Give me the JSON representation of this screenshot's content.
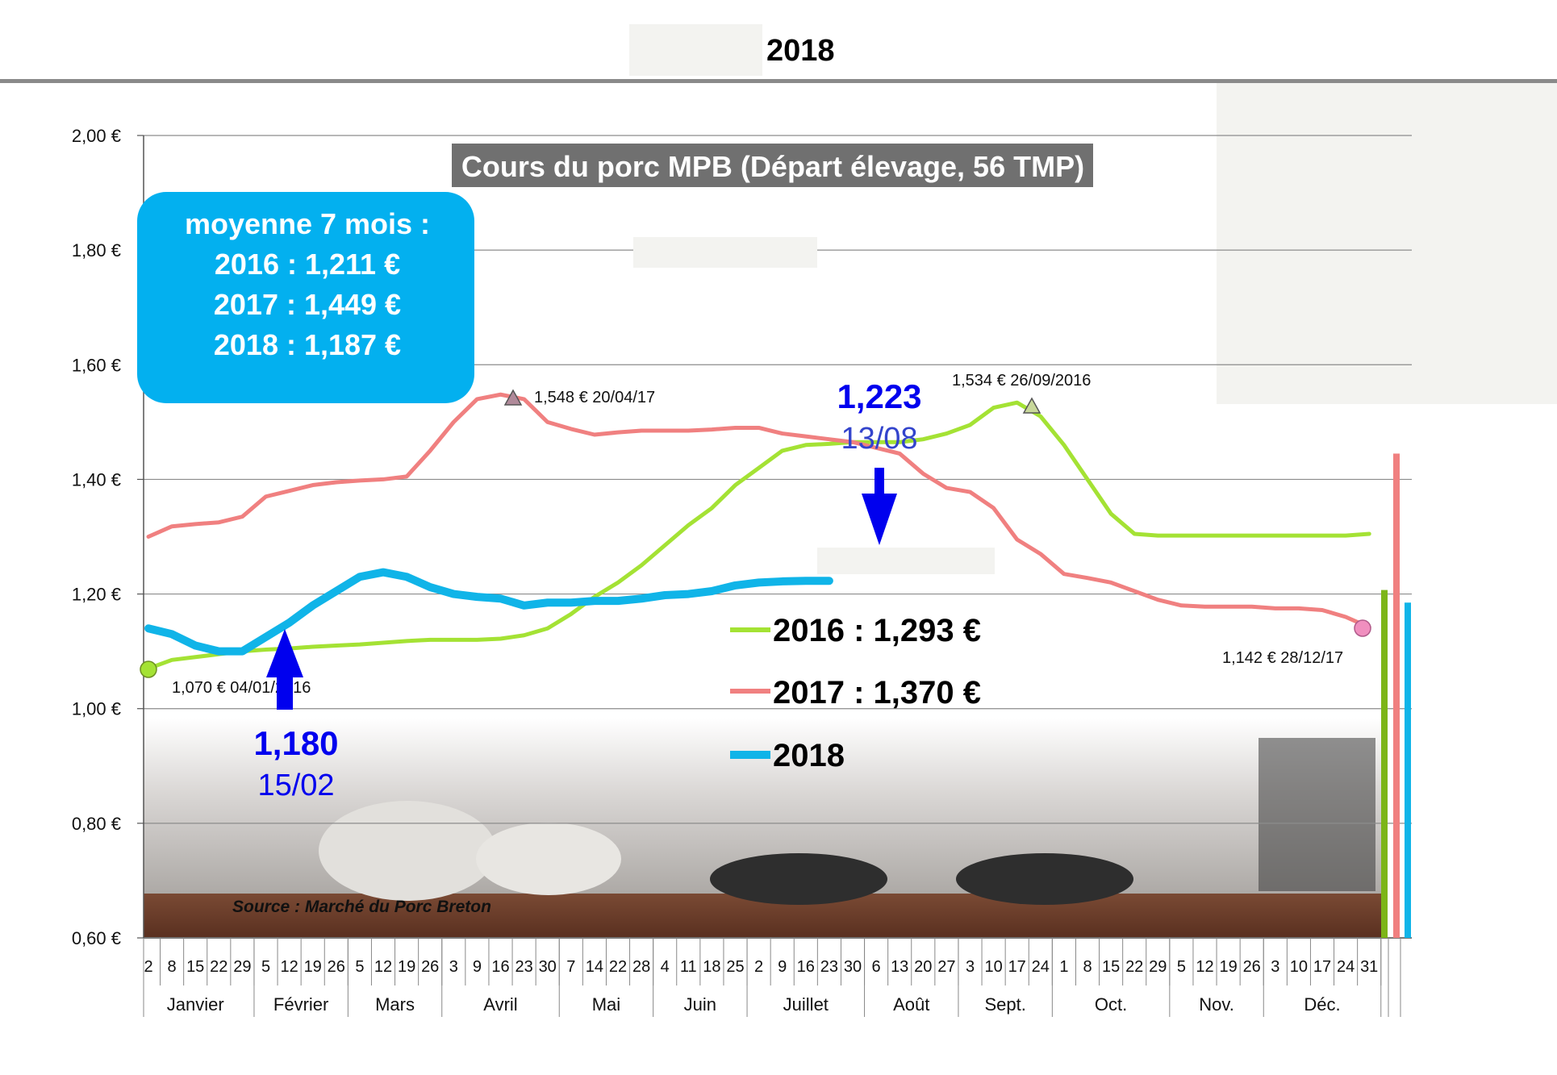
{
  "header": {
    "title": "2018"
  },
  "chart_data": {
    "type": "line",
    "title": "Cours du porc MPB (Départ élevage, 56 TMP)",
    "ylim": [
      0.6,
      2.0
    ],
    "y_ticks": [
      {
        "value": 2.0,
        "label": "2,00 €"
      },
      {
        "value": 1.8,
        "label": "1,80 €"
      },
      {
        "value": 1.6,
        "label": "1,60 €"
      },
      {
        "value": 1.4,
        "label": "1,40 €"
      },
      {
        "value": 1.2,
        "label": "1,20 €"
      },
      {
        "value": 1.0,
        "label": "1,00 €"
      },
      {
        "value": 0.8,
        "label": "0,80 €"
      },
      {
        "value": 0.6,
        "label": "0,60 €"
      }
    ],
    "grid": true,
    "week_labels": [
      "2",
      "8",
      "15",
      "22",
      "29",
      "5",
      "12",
      "19",
      "26",
      "5",
      "12",
      "19",
      "26",
      "3",
      "9",
      "16",
      "23",
      "30",
      "7",
      "14",
      "22",
      "28",
      "4",
      "11",
      "18",
      "25",
      "2",
      "9",
      "16",
      "23",
      "30",
      "6",
      "13",
      "20",
      "27",
      "3",
      "10",
      "17",
      "24",
      "1",
      "8",
      "15",
      "22",
      "29",
      "5",
      "12",
      "19",
      "26",
      "3",
      "10",
      "17",
      "24",
      "31"
    ],
    "months": [
      {
        "label": "Janvier",
        "span": 5
      },
      {
        "label": "Février",
        "span": 4
      },
      {
        "label": "Mars",
        "span": 4
      },
      {
        "label": "Avril",
        "span": 5
      },
      {
        "label": "Mai",
        "span": 4
      },
      {
        "label": "Juin",
        "span": 4
      },
      {
        "label": "Juillet",
        "span": 5
      },
      {
        "label": "Août",
        "span": 4
      },
      {
        "label": "Sept.",
        "span": 4
      },
      {
        "label": "Oct.",
        "span": 5
      },
      {
        "label": "Nov.",
        "span": 4
      },
      {
        "label": "Déc.",
        "span": 5
      }
    ],
    "series": [
      {
        "name": "2016 : 1,293 €",
        "color": "#a4e234",
        "values": [
          1.07,
          1.085,
          1.09,
          1.095,
          1.1,
          1.103,
          1.105,
          1.108,
          1.11,
          1.112,
          1.115,
          1.118,
          1.12,
          1.12,
          1.12,
          1.122,
          1.128,
          1.14,
          1.165,
          1.195,
          1.22,
          1.25,
          1.285,
          1.32,
          1.35,
          1.39,
          1.42,
          1.45,
          1.46,
          1.462,
          1.465,
          1.465,
          1.465,
          1.47,
          1.48,
          1.495,
          1.525,
          1.534,
          1.51,
          1.46,
          1.4,
          1.34,
          1.305,
          1.302,
          1.302,
          1.302,
          1.302,
          1.302,
          1.302,
          1.302,
          1.302,
          1.302,
          1.305
        ]
      },
      {
        "name": "2017 : 1,370 €",
        "color": "#f08080",
        "values": [
          1.3,
          1.318,
          1.322,
          1.325,
          1.335,
          1.37,
          1.38,
          1.39,
          1.395,
          1.398,
          1.4,
          1.405,
          1.45,
          1.5,
          1.54,
          1.548,
          1.54,
          1.5,
          1.488,
          1.478,
          1.482,
          1.485,
          1.485,
          1.485,
          1.487,
          1.49,
          1.49,
          1.48,
          1.475,
          1.47,
          1.465,
          1.455,
          1.445,
          1.41,
          1.385,
          1.378,
          1.35,
          1.295,
          1.27,
          1.235,
          1.228,
          1.22,
          1.205,
          1.19,
          1.18,
          1.178,
          1.178,
          1.178,
          1.175,
          1.175,
          1.172,
          1.16,
          1.142
        ]
      },
      {
        "name": "2018",
        "color": "#10b4e8",
        "values": [
          1.14,
          1.13,
          1.11,
          1.1,
          1.1,
          1.125,
          1.15,
          1.18,
          1.205,
          1.23,
          1.238,
          1.23,
          1.212,
          1.2,
          1.195,
          1.192,
          1.18,
          1.185,
          1.185,
          1.188,
          1.188,
          1.192,
          1.198,
          1.2,
          1.205,
          1.215,
          1.22,
          1.222,
          1.223,
          1.223
        ]
      }
    ],
    "annotations": [
      {
        "text": "1,548 € 20/04/17",
        "value": 1.548,
        "week": 15
      },
      {
        "text": "1,534 € 26/09/2016",
        "value": 1.534,
        "week": 37
      },
      {
        "text": "1,070 € 04/01/2016",
        "value": 1.07,
        "week": 0
      },
      {
        "text": "1,142 € 28/12/17",
        "value": 1.142,
        "week": 52
      }
    ],
    "callouts": [
      {
        "value_text": "1,180",
        "date_text": "15/02",
        "direction": "up"
      },
      {
        "value_text": "1,223",
        "date_text": "13/08",
        "direction": "down"
      }
    ],
    "average_box": {
      "heading": "moyenne 7 mois :",
      "lines": [
        "2016 :  1,211 €",
        "2017 :  1,449 €",
        "2018 :  1,187 €"
      ]
    },
    "source": "Source : Marché du Porc Breton",
    "legend_position": "center-right",
    "bar_colors": [
      "#7cb518",
      "#f08080",
      "#10b4e8"
    ]
  }
}
